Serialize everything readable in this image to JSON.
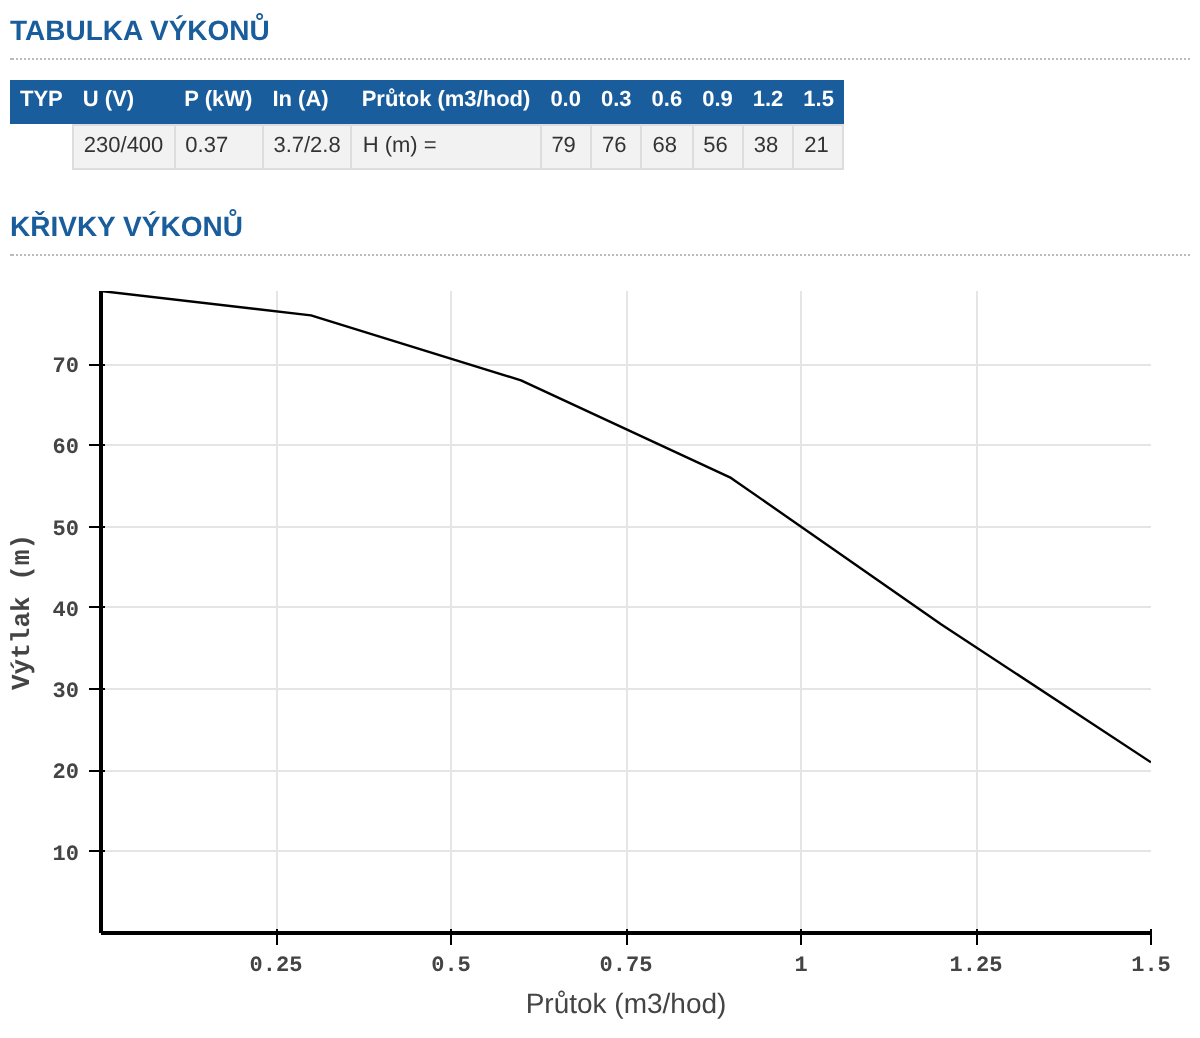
{
  "chart_data": {
    "type": "line",
    "title": "KŘIVKY VÝKONŮ",
    "xlabel": "Průtok (m3/hod)",
    "ylabel": "Výtlak (m)",
    "annotations": [
      "TABULKA VÝKONŮ",
      "TYP",
      "U (V)",
      "P (kW)",
      "In (A)",
      "Průtok (m3/hod)",
      "0.0",
      "0.3",
      "0.6",
      "0.9",
      "1.2",
      "1.5",
      "230/400",
      "0.37",
      "3.7/2.8",
      "H (m) =",
      "79",
      "76",
      "68",
      "56",
      "38",
      "21"
    ],
    "x": [
      0,
      0.3,
      0.6,
      0.9,
      1.2,
      1.5
    ],
    "series": [
      {
        "color": "#000000",
        "values": [
          79,
          76,
          68,
          56,
          38,
          21
        ]
      }
    ],
    "xlim": [
      0,
      1.5
    ],
    "ylim": [
      0,
      79
    ],
    "xticks": [
      0.25,
      0.5,
      0.75,
      1,
      1.25,
      1.5
    ],
    "yticks": [
      10,
      20,
      30,
      40,
      50,
      60,
      70
    ],
    "grid": true,
    "marker": "none",
    "line_style": "solid"
  }
}
